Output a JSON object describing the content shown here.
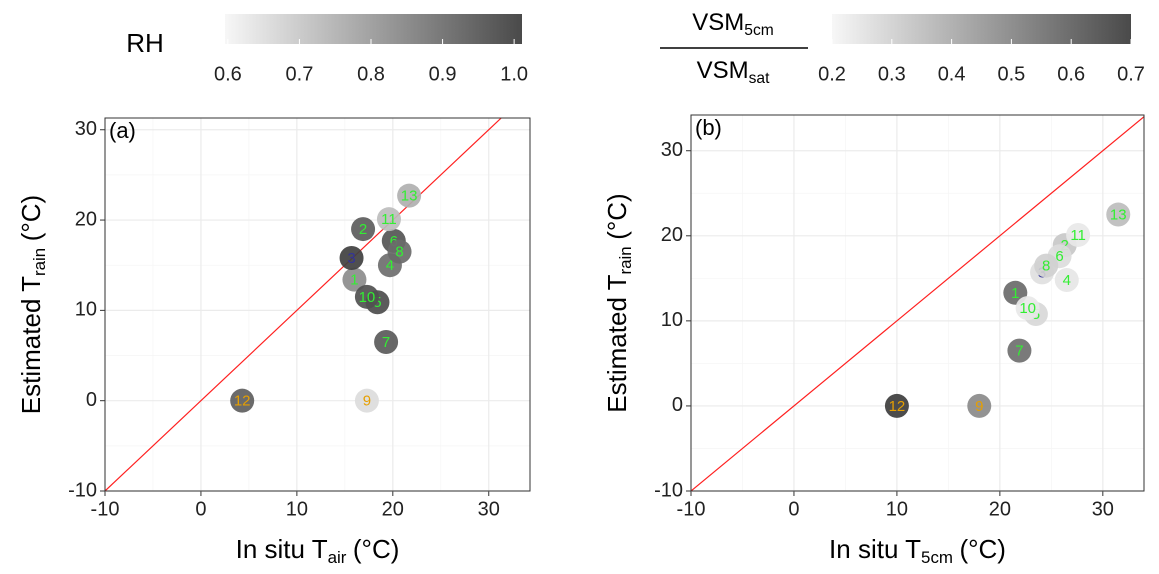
{
  "chart_data": [
    {
      "type": "scatter",
      "panel_label": "(a)",
      "xlabel": {
        "text": "In situ T",
        "sub": "air",
        "unit": "(°C)"
      },
      "ylabel": {
        "text": "Estimated T",
        "sub": "rain",
        "unit": "(°C)"
      },
      "xlim": [
        -10,
        34.3
      ],
      "ylim": [
        -10,
        31.3
      ],
      "xticks": [
        -10,
        0,
        10,
        20,
        30
      ],
      "yticks": [
        -10,
        0,
        10,
        20,
        30
      ],
      "grid": true,
      "identity_line": true,
      "identity_line_color": "#ff2020",
      "series": [
        {
          "point_labels": [
            "1",
            "2",
            "3",
            "4",
            "5",
            "6",
            "7",
            "8",
            "9",
            "10",
            "11",
            "12",
            "13"
          ],
          "x": [
            16.0,
            16.9,
            15.7,
            19.7,
            18.4,
            20.1,
            19.3,
            20.7,
            17.3,
            17.3,
            19.6,
            4.3,
            21.7
          ],
          "values": [
            13.4,
            19.0,
            15.8,
            15.0,
            10.9,
            17.7,
            6.5,
            16.5,
            0,
            11.5,
            20.1,
            0,
            22.7
          ],
          "colors": [
            "#8c8c8c",
            "#5c5c5c",
            "#404040",
            "#6e6e6e",
            "#4d4d4d",
            "#555555",
            "#5a5a5a",
            "#6a6a6a",
            "#dcdcdc",
            "#505050",
            "#bdbdbd",
            "#5e5e5e",
            "#b0b0b0"
          ],
          "label_colors": [
            "#33ee33",
            "#33ee33",
            "#333399",
            "#33ee33",
            "#33ee33",
            "#33ee33",
            "#33ee33",
            "#33ee33",
            "#e69f00",
            "#33ee33",
            "#33ee33",
            "#e69f00",
            "#33ee33"
          ]
        }
      ],
      "colorbar": {
        "title": {
          "text": "RH"
        },
        "lim": [
          0.596,
          1.011
        ],
        "colors": [
          "#f7f7f7",
          "#4a4a4a"
        ],
        "ticks": [
          0.6,
          0.7,
          0.8,
          0.9,
          {
            "value": 1,
            "label": "1.0"
          }
        ]
      }
    },
    {
      "type": "scatter",
      "panel_label": "(b)",
      "xlabel": {
        "text": "In situ T",
        "sub": "5cm",
        "unit": "(°C)"
      },
      "ylabel": {
        "text": "Estimated T",
        "sub": "rain",
        "unit": "(°C)"
      },
      "xlim": [
        -10,
        34.0
      ],
      "ylim": [
        -10,
        34.2
      ],
      "xticks": [
        -10,
        0,
        10,
        20,
        30
      ],
      "yticks": [
        -10,
        0,
        10,
        20,
        30
      ],
      "grid": true,
      "identity_line": true,
      "identity_line_color": "#ff2020",
      "series": [
        {
          "point_labels": [
            "1",
            "2",
            "3",
            "4",
            "5",
            "6",
            "7",
            "8",
            "9",
            "10",
            "11",
            "12",
            "13"
          ],
          "x": [
            21.5,
            26.3,
            24.1,
            26.5,
            23.5,
            25.8,
            21.9,
            24.5,
            18.0,
            22.7,
            27.6,
            10.0,
            31.5
          ],
          "values": [
            13.3,
            18.9,
            15.7,
            14.8,
            10.8,
            17.6,
            6.5,
            16.5,
            0,
            11.5,
            20.1,
            0,
            22.5
          ],
          "colors": [
            "#6a6a6a",
            "#c8c8c8",
            "#e0e0e0",
            "#e6e6e6",
            "#d8d8d8",
            "#dcdcdc",
            "#6f6f6f",
            "#d0d0d0",
            "#8a8a8a",
            "#e8e8e8",
            "#e8e8e8",
            "#3d3d3d",
            "#bdbdbd"
          ],
          "label_colors": [
            "#33ee33",
            "#33ee33",
            "#333399",
            "#33ee33",
            "#33ee33",
            "#33ee33",
            "#33ee33",
            "#33ee33",
            "#e69f00",
            "#33ee33",
            "#33ee33",
            "#e69f00",
            "#33ee33"
          ]
        }
      ],
      "colorbar": {
        "title": {
          "numerator": {
            "text": "VSM",
            "sub": "5cm"
          },
          "denominator": {
            "text": "VSM",
            "sub": "sat"
          }
        },
        "lim": [
          0.2,
          0.7
        ],
        "colors": [
          "#f7f7f7",
          "#4a4a4a"
        ],
        "ticks": [
          0.2,
          0.3,
          0.4,
          0.5,
          0.6,
          0.7
        ]
      }
    }
  ]
}
